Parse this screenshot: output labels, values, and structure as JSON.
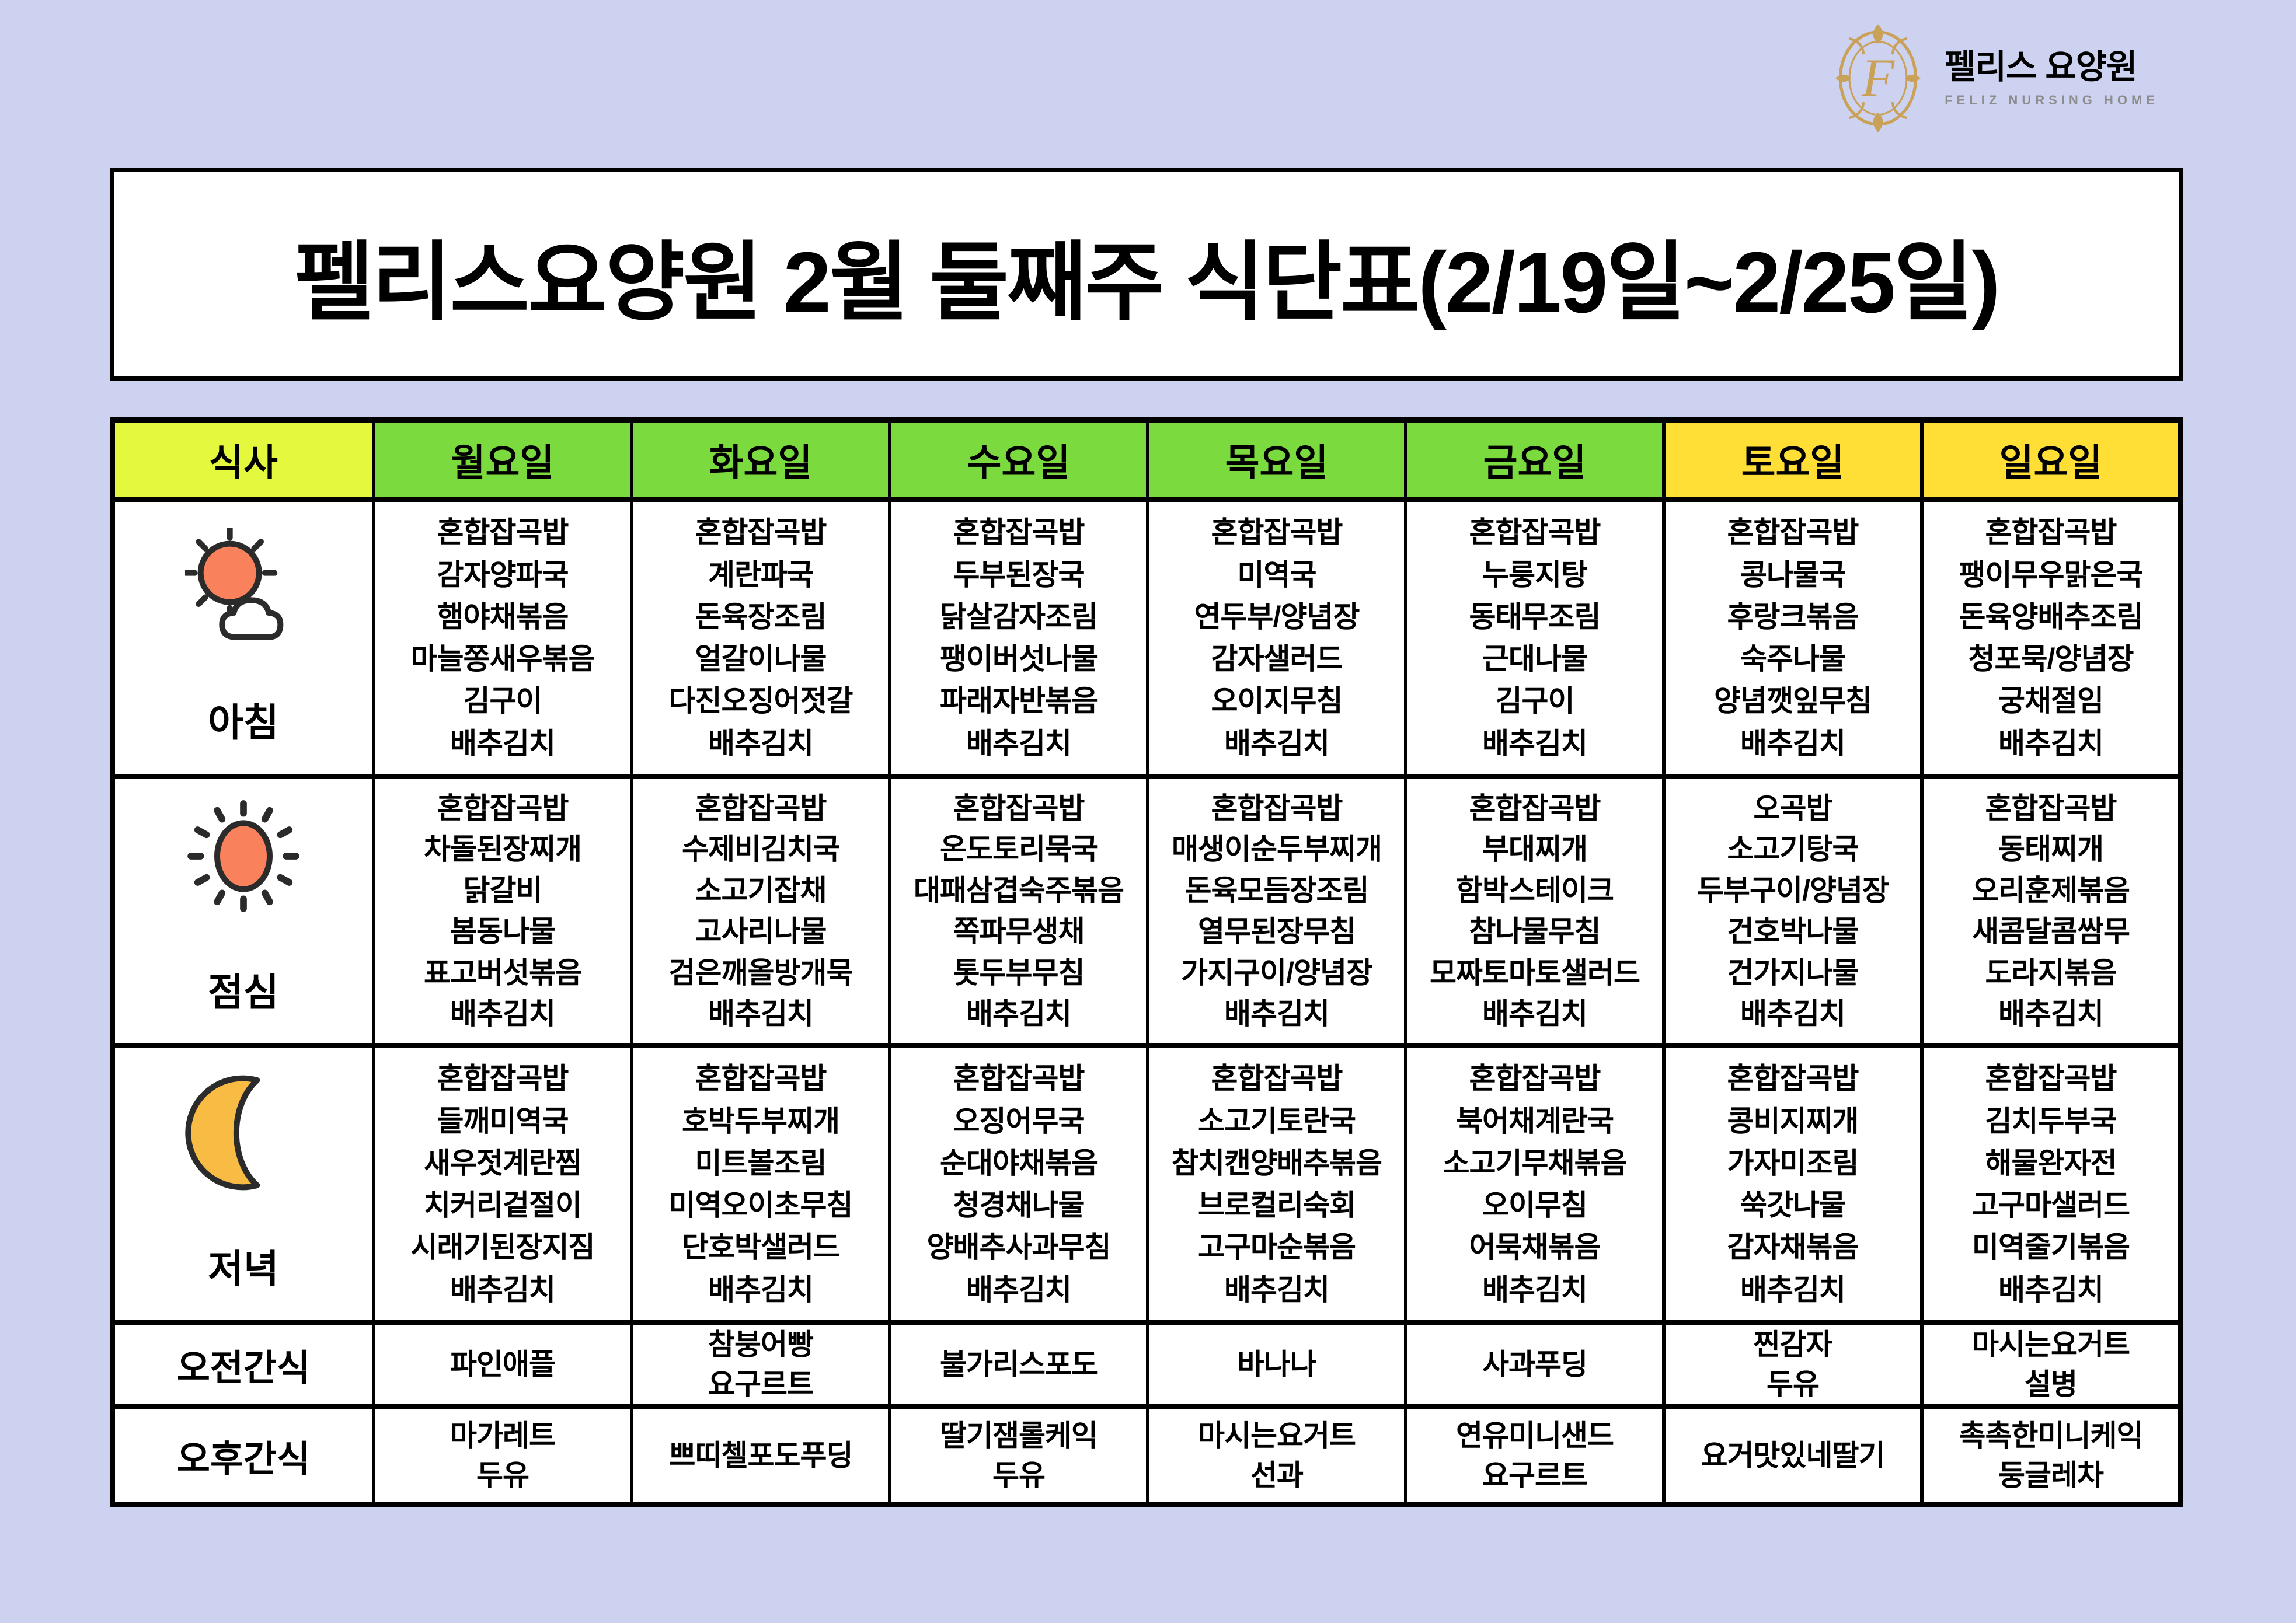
{
  "logo": {
    "monogram": "F",
    "name_ko": "펠리스 요양원",
    "name_en": "FELIZ NURSING HOME"
  },
  "title": "펠리스요양원 2월 둘째주 식단표(2/19일~2/25일)",
  "colors": {
    "background": "#cdd2f0",
    "meal_header_bg": "#e4f93e",
    "weekday_bg": "#7bda3d",
    "weekend_bg": "#ffdf36",
    "cell_white": "#ffffff",
    "border_black": "#000000",
    "logo_gold": "#c9a158",
    "logo_gray": "#8d8d8d",
    "sun_orange": "#f9815b",
    "moon_gold": "#f8bc45"
  },
  "table": {
    "meal_col_header": "식사",
    "day_headers": [
      {
        "label": "월요일",
        "type": "weekday"
      },
      {
        "label": "화요일",
        "type": "weekday"
      },
      {
        "label": "수요일",
        "type": "weekday"
      },
      {
        "label": "목요일",
        "type": "weekday"
      },
      {
        "label": "금요일",
        "type": "weekday"
      },
      {
        "label": "토요일",
        "type": "weekend"
      },
      {
        "label": "일요일",
        "type": "weekend"
      }
    ],
    "meal_rows": [
      {
        "id": "breakfast",
        "label": "아침",
        "icon": "sun-cloud-icon",
        "menus": [
          [
            "혼합잡곡밥",
            "감자양파국",
            "햄야채볶음",
            "마늘쫑새우볶음",
            "김구이",
            "배추김치"
          ],
          [
            "혼합잡곡밥",
            "계란파국",
            "돈육장조림",
            "얼갈이나물",
            "다진오징어젓갈",
            "배추김치"
          ],
          [
            "혼합잡곡밥",
            "두부된장국",
            "닭살감자조림",
            "팽이버섯나물",
            "파래자반볶음",
            "배추김치"
          ],
          [
            "혼합잡곡밥",
            "미역국",
            "연두부/양념장",
            "감자샐러드",
            "오이지무침",
            "배추김치"
          ],
          [
            "혼합잡곡밥",
            "누룽지탕",
            "동태무조림",
            "근대나물",
            "김구이",
            "배추김치"
          ],
          [
            "혼합잡곡밥",
            "콩나물국",
            "후랑크볶음",
            "숙주나물",
            "양념깻잎무침",
            "배추김치"
          ],
          [
            "혼합잡곡밥",
            "팽이무우맑은국",
            "돈육양배추조림",
            "청포묵/양념장",
            "궁채절임",
            "배추김치"
          ]
        ]
      },
      {
        "id": "lunch",
        "label": "점심",
        "icon": "sun-icon",
        "menus": [
          [
            "혼합잡곡밥",
            "차돌된장찌개",
            "닭갈비",
            "봄동나물",
            "표고버섯볶음",
            "배추김치"
          ],
          [
            "혼합잡곡밥",
            "수제비김치국",
            "소고기잡채",
            "고사리나물",
            "검은깨올방개묵",
            "배추김치"
          ],
          [
            "혼합잡곡밥",
            "온도토리묵국",
            "대패삼겹숙주볶음",
            "쪽파무생채",
            "톳두부무침",
            "배추김치"
          ],
          [
            "혼합잡곡밥",
            "매생이순두부찌개",
            "돈육모듬장조림",
            "열무된장무침",
            "가지구이/양념장",
            "배추김치"
          ],
          [
            "혼합잡곡밥",
            "부대찌개",
            "함박스테이크",
            "참나물무침",
            "모짜토마토샐러드",
            "배추김치"
          ],
          [
            "오곡밥",
            "소고기탕국",
            "두부구이/양념장",
            "건호박나물",
            "건가지나물",
            "배추김치"
          ],
          [
            "혼합잡곡밥",
            "동태찌개",
            "오리훈제볶음",
            "새콤달콤쌈무",
            "도라지볶음",
            "배추김치"
          ]
        ]
      },
      {
        "id": "dinner",
        "label": "저녁",
        "icon": "moon-icon",
        "menus": [
          [
            "혼합잡곡밥",
            "들깨미역국",
            "새우젓계란찜",
            "치커리겉절이",
            "시래기된장지짐",
            "배추김치"
          ],
          [
            "혼합잡곡밥",
            "호박두부찌개",
            "미트볼조림",
            "미역오이초무침",
            "단호박샐러드",
            "배추김치"
          ],
          [
            "혼합잡곡밥",
            "오징어무국",
            "순대야채볶음",
            "청경채나물",
            "양배추사과무침",
            "배추김치"
          ],
          [
            "혼합잡곡밥",
            "소고기토란국",
            "참치캔양배추볶음",
            "브로컬리숙회",
            "고구마순볶음",
            "배추김치"
          ],
          [
            "혼합잡곡밥",
            "북어채계란국",
            "소고기무채볶음",
            "오이무침",
            "어묵채볶음",
            "배추김치"
          ],
          [
            "혼합잡곡밥",
            "콩비지찌개",
            "가자미조림",
            "쑥갓나물",
            "감자채볶음",
            "배추김치"
          ],
          [
            "혼합잡곡밥",
            "김치두부국",
            "해물완자전",
            "고구마샐러드",
            "미역줄기볶음",
            "배추김치"
          ]
        ]
      }
    ],
    "snack_rows": [
      {
        "id": "morning-snack",
        "label": "오전간식",
        "menus": [
          [
            "파인애플"
          ],
          [
            "참붕어빵",
            "요구르트"
          ],
          [
            "불가리스포도"
          ],
          [
            "바나나"
          ],
          [
            "사과푸딩"
          ],
          [
            "찐감자",
            "두유"
          ],
          [
            "마시는요거트",
            "설병"
          ]
        ]
      },
      {
        "id": "afternoon-snack",
        "label": "오후간식",
        "menus": [
          [
            "마가레트",
            "두유"
          ],
          [
            "쁘띠첼포도푸딩"
          ],
          [
            "딸기잼롤케익",
            "두유"
          ],
          [
            "마시는요거트",
            "선과"
          ],
          [
            "연유미니샌드",
            "요구르트"
          ],
          [
            "요거맛있네딸기"
          ],
          [
            "촉촉한미니케익",
            "둥글레차"
          ]
        ]
      }
    ]
  }
}
